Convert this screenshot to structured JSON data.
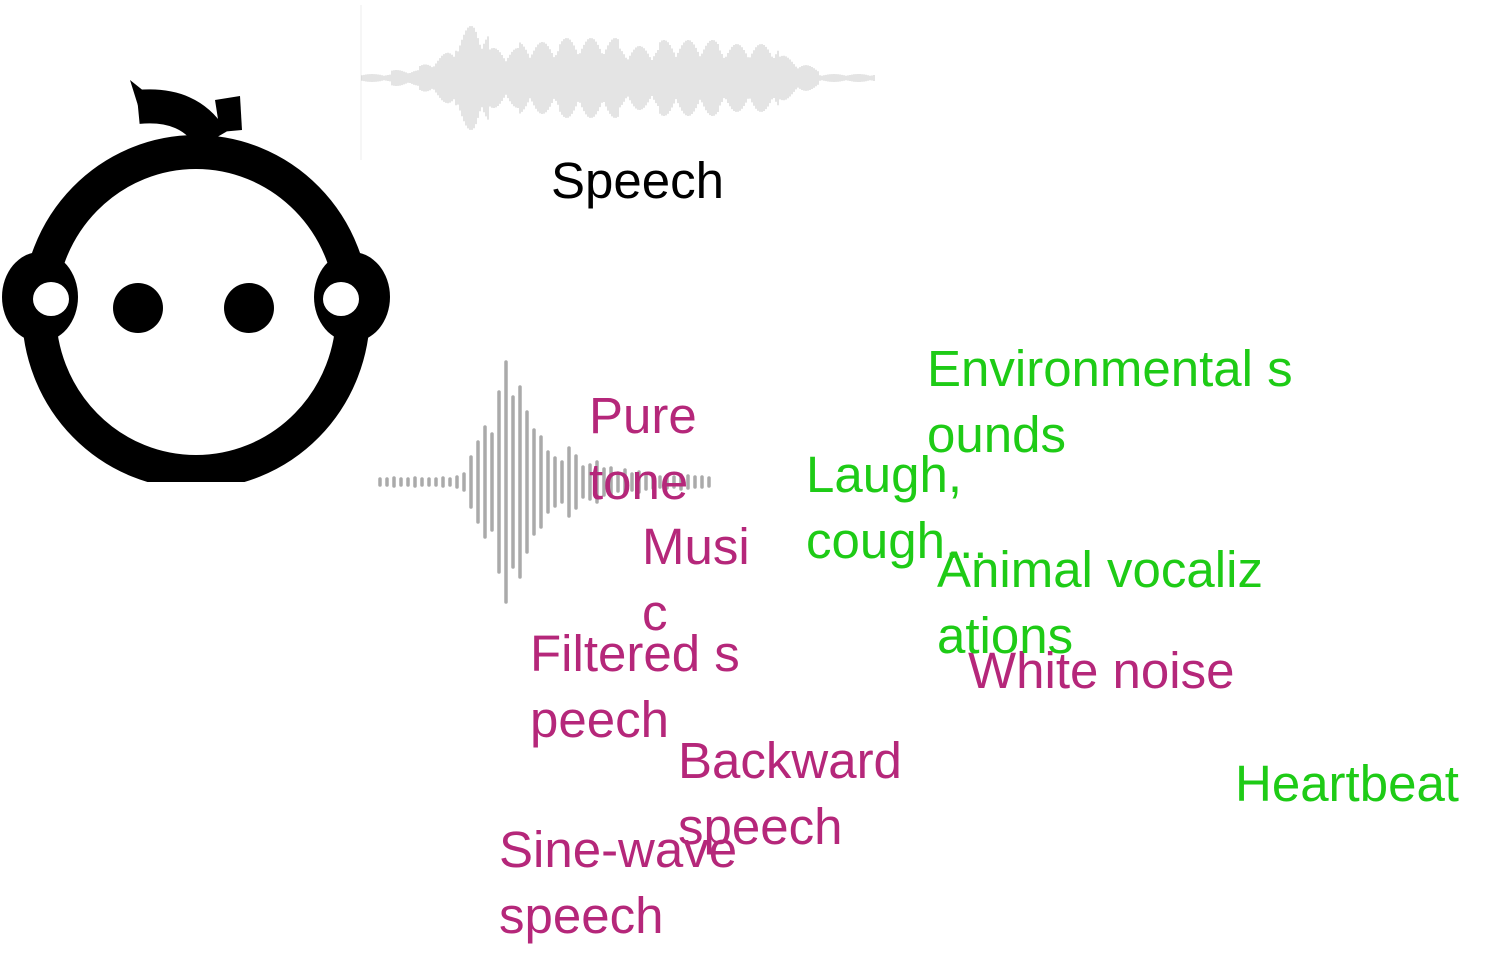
{
  "colors": {
    "speech": "#000000",
    "non_speech_human_made": "#b5277a",
    "natural_sounds": "#1ecb16",
    "waveform_speech": "#c8c8c8",
    "waveform_tone": "#aaaaaa",
    "icon": "#000000"
  },
  "icons": {
    "infant": "baby-face-icon",
    "speech_wave": "speech-waveform-icon",
    "sound_wave": "sound-waveform-icon"
  },
  "labels": {
    "speech": "Speech",
    "pure_tone": "Pure tone",
    "music": "Music",
    "filtered_speech": "Filtered speech",
    "backward_speech": "Backward speech",
    "sine_wave_speech": "Sine-wave speech",
    "white_noise": "White noise",
    "environmental_sounds": "Environmental sounds",
    "laugh_cough": "Laugh, cough...",
    "animal_vocalizations": "Animal vocalizations",
    "heartbeat": "Heartbeat"
  }
}
